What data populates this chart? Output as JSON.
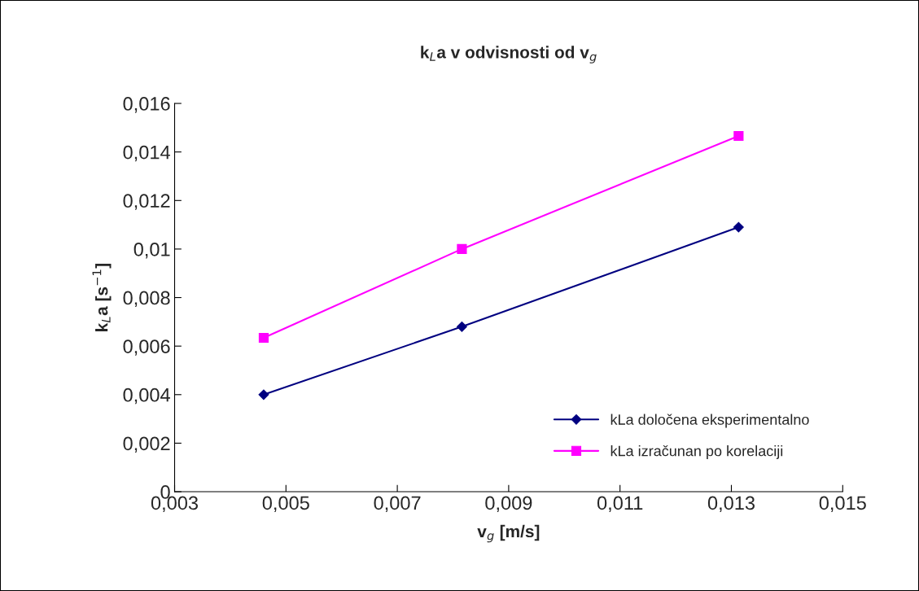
{
  "chart_data": {
    "type": "line",
    "title": "k$_{L}$a v odvisnosti od v$_{g}$",
    "xlabel": "v$_{g}$ [m/s]",
    "ylabel": "k$_{L}$a [s$^{−1}$]",
    "series": [
      {
        "name": "kLa določena eksperimentalno",
        "color": "#000080",
        "marker": "diamond",
        "x": [
          0.0046,
          0.00816,
          0.01313
        ],
        "values": [
          0.004,
          0.0068,
          0.0109
        ]
      },
      {
        "name": "kLa izračunan po korelaciji",
        "color": "#ff00ff",
        "marker": "square",
        "x": [
          0.0046,
          0.00816,
          0.01313
        ],
        "values": [
          0.00634,
          0.01,
          0.01466
        ]
      }
    ],
    "xlim": [
      0.003,
      0.015
    ],
    "xticks": [
      {
        "value": 0.003,
        "label": "0,003"
      },
      {
        "value": 0.005,
        "label": "0,005"
      },
      {
        "value": 0.007,
        "label": "0,007"
      },
      {
        "value": 0.009,
        "label": "0,009"
      },
      {
        "value": 0.011,
        "label": "0,011"
      },
      {
        "value": 0.013,
        "label": "0,013"
      },
      {
        "value": 0.015,
        "label": "0,015"
      }
    ],
    "ylim": [
      0,
      0.016
    ],
    "yticks": [
      0,
      {
        "value": 0.002,
        "label": "0,002"
      },
      {
        "value": 0.004,
        "label": "0,004"
      },
      {
        "value": 0.006,
        "label": "0,006"
      },
      {
        "value": 0.008,
        "label": "0,008"
      },
      {
        "value": 0.01,
        "label": "0,01"
      },
      {
        "value": 0.012,
        "label": "0,012"
      },
      {
        "value": 0.014,
        "label": "0,014"
      },
      {
        "value": 0.016,
        "label": "0,016"
      }
    ],
    "grid": false,
    "legend": "bottom right"
  }
}
